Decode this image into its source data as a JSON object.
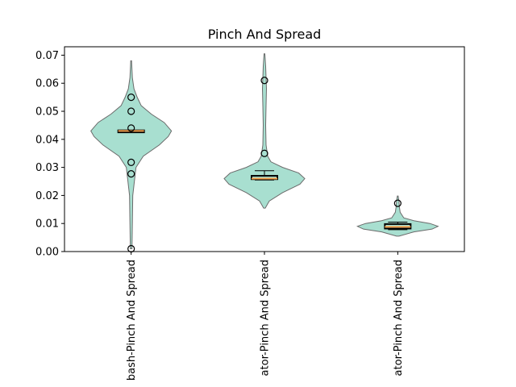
{
  "chart_data": {
    "type": "violin",
    "title": "Pinch And Spread",
    "xlabel": "",
    "ylabel": "",
    "ylim": [
      0,
      0.073
    ],
    "yticks": [
      "0.00",
      "0.01",
      "0.02",
      "0.03",
      "0.04",
      "0.05",
      "0.06",
      "0.07"
    ],
    "grid": false,
    "colors": {
      "violin_fill": "#a8dfd0",
      "violin_edge": "#6b6b6b",
      "median": "#f5a04c",
      "box": "#000000"
    },
    "categories": [
      {
        "label": "bash-Pinch And Spread",
        "range": [
          0.001,
          0.068
        ],
        "box": {
          "q1": 0.0425,
          "median": 0.043,
          "q3": 0.0432,
          "whisker_low": 0.0425,
          "whisker_high": 0.0432
        },
        "outliers": [
          0.055,
          0.05,
          0.044,
          0.0318,
          0.0277,
          0.001
        ],
        "density": [
          [
            0.001,
            0.002
          ],
          [
            0.01,
            0.003
          ],
          [
            0.02,
            0.004
          ],
          [
            0.03,
            0.012
          ],
          [
            0.034,
            0.03
          ],
          [
            0.038,
            0.07
          ],
          [
            0.041,
            0.092
          ],
          [
            0.043,
            0.1
          ],
          [
            0.046,
            0.082
          ],
          [
            0.049,
            0.05
          ],
          [
            0.052,
            0.025
          ],
          [
            0.055,
            0.015
          ],
          [
            0.058,
            0.007
          ],
          [
            0.062,
            0.003
          ],
          [
            0.068,
            0.001
          ]
        ]
      },
      {
        "label": "ator-Pinch And Spread",
        "range": [
          0.0155,
          0.0705
        ],
        "box": {
          "q1": 0.0258,
          "median": 0.026,
          "q3": 0.027,
          "whisker_low": 0.0255,
          "whisker_high": 0.0288
        },
        "outliers": [
          0.061,
          0.035
        ],
        "density": [
          [
            0.0155,
            0.002
          ],
          [
            0.018,
            0.012
          ],
          [
            0.021,
            0.045
          ],
          [
            0.024,
            0.088
          ],
          [
            0.026,
            0.1
          ],
          [
            0.028,
            0.085
          ],
          [
            0.03,
            0.045
          ],
          [
            0.032,
            0.016
          ],
          [
            0.034,
            0.008
          ],
          [
            0.038,
            0.004
          ],
          [
            0.045,
            0.003
          ],
          [
            0.052,
            0.004
          ],
          [
            0.058,
            0.005
          ],
          [
            0.062,
            0.004
          ],
          [
            0.066,
            0.003
          ],
          [
            0.0705,
            0.001
          ]
        ]
      },
      {
        "label": "ator-Pinch And Spread",
        "range": [
          0.0055,
          0.0198
        ],
        "box": {
          "q1": 0.0082,
          "median": 0.0088,
          "q3": 0.0098,
          "whisker_low": 0.0078,
          "whisker_high": 0.0105
        },
        "outliers": [
          0.0172
        ],
        "density": [
          [
            0.0055,
            0.003
          ],
          [
            0.007,
            0.04
          ],
          [
            0.008,
            0.085
          ],
          [
            0.009,
            0.1
          ],
          [
            0.01,
            0.08
          ],
          [
            0.011,
            0.04
          ],
          [
            0.012,
            0.015
          ],
          [
            0.014,
            0.006
          ],
          [
            0.016,
            0.004
          ],
          [
            0.018,
            0.003
          ],
          [
            0.0198,
            0.001
          ]
        ]
      }
    ]
  }
}
